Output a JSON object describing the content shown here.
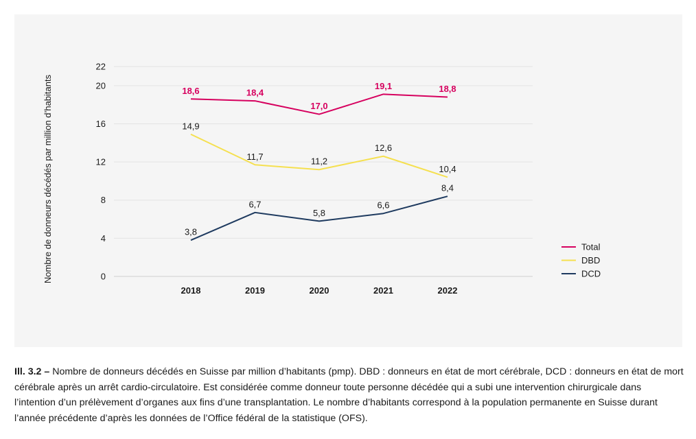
{
  "chart_data": {
    "type": "line",
    "categories": [
      "2018",
      "2019",
      "2020",
      "2021",
      "2022"
    ],
    "series": [
      {
        "name": "Total",
        "color": "#d6005e",
        "values": [
          18.6,
          18.4,
          17.0,
          19.1,
          18.8
        ],
        "labels": [
          "18,6",
          "18,4",
          "17,0",
          "19,1",
          "18,8"
        ]
      },
      {
        "name": "DBD",
        "color": "#f5e04f",
        "values": [
          14.9,
          11.7,
          11.2,
          12.6,
          10.4
        ],
        "labels": [
          "14,9",
          "11,7",
          "11,2",
          "12,6",
          "10,4"
        ]
      },
      {
        "name": "DCD",
        "color": "#1e3a5f",
        "values": [
          3.8,
          6.7,
          5.8,
          6.6,
          8.4
        ],
        "labels": [
          "3,8",
          "6,7",
          "5,8",
          "6,6",
          "8,4"
        ]
      }
    ],
    "yticks": [
      "0",
      "4",
      "8",
      "12",
      "16",
      "20",
      "22"
    ],
    "ytick_values": [
      0,
      4,
      8,
      12,
      16,
      20,
      22
    ],
    "ylim": [
      0,
      22
    ],
    "ylabel": "Nombre de donneurs décédés par million d’habitants",
    "grid": true,
    "legend": "right"
  },
  "caption": {
    "prefix": "Ill. 3.2 –",
    "text": " Nombre de donneurs décédés en Suisse par million d’habitants (pmp). DBD : donneurs en état de mort cérébrale, DCD : donneurs en état de mort cérébrale après un arrêt cardio-circulatoire. Est considérée comme donneur toute personne décédée qui a subi une intervention chirurgicale dans l’intention d’un prélèvement d’organes aux fins d’une transplantation. Le nombre d’habitants correspond à la population permanente en Suisse durant l’année précédente d’après les données de l’Office fédéral de la statistique (OFS)."
  }
}
